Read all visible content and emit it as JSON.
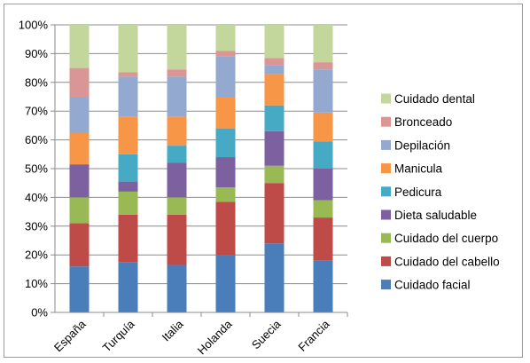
{
  "chart_data": {
    "type": "bar",
    "stacked": true,
    "normalized": true,
    "title": "",
    "xlabel": "",
    "ylabel": "",
    "ylim": [
      0,
      100
    ],
    "y_ticks": [
      "0%",
      "10%",
      "20%",
      "30%",
      "40%",
      "50%",
      "60%",
      "70%",
      "80%",
      "90%",
      "100%"
    ],
    "grid": "horizontal",
    "legend_position": "right",
    "categories": [
      "España",
      "Turquía",
      "Italia",
      "Holanda",
      "Suecia",
      "Francia"
    ],
    "series": [
      {
        "name": "Cuidado facial",
        "color": "#4a7ebb",
        "values": [
          16,
          17.5,
          16.5,
          20,
          24,
          18
        ]
      },
      {
        "name": "Cuidado del cabello",
        "color": "#be4b48",
        "values": [
          15,
          16.5,
          17.5,
          18.5,
          21,
          15
        ]
      },
      {
        "name": "Cuidado del cuerpo",
        "color": "#98b954",
        "values": [
          9,
          8,
          6,
          5,
          6,
          6
        ]
      },
      {
        "name": "Dieta saludable",
        "color": "#7d60a0",
        "values": [
          11.5,
          3.5,
          12,
          10.5,
          12,
          11
        ]
      },
      {
        "name": "Pedicura",
        "color": "#46aac5",
        "values": [
          0,
          9.5,
          6,
          10,
          9,
          9.5
        ]
      },
      {
        "name": "Manicula",
        "color": "#f79646",
        "values": [
          11,
          13,
          10,
          11,
          11,
          10
        ]
      },
      {
        "name": "Depilación",
        "color": "#93a9d0",
        "values": [
          12.5,
          14,
          14,
          14,
          3,
          15
        ]
      },
      {
        "name": "Bronceado",
        "color": "#d99694",
        "values": [
          10,
          1.5,
          2.5,
          2,
          2.5,
          2.5
        ]
      },
      {
        "name": "Cuidado dental",
        "color": "#c3d69b",
        "values": [
          15,
          16.5,
          15.5,
          9,
          11.5,
          13
        ]
      }
    ]
  }
}
